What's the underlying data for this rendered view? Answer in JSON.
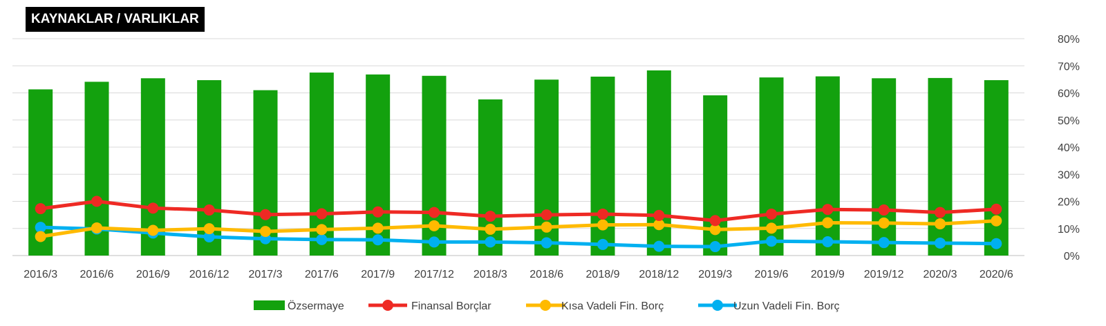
{
  "chart_data": {
    "type": "bar",
    "title": "KAYNAKLAR / VARLIKLAR",
    "categories": [
      "2016/3",
      "2016/6",
      "2016/9",
      "2016/12",
      "2017/3",
      "2017/6",
      "2017/9",
      "2017/12",
      "2018/3",
      "2018/6",
      "2018/9",
      "2018/12",
      "2019/3",
      "2019/6",
      "2019/9",
      "2019/12",
      "2020/3",
      "2020/6"
    ],
    "ylim": [
      0,
      80
    ],
    "y_ticks": [
      "0%",
      "10%",
      "20%",
      "30%",
      "40%",
      "50%",
      "60%",
      "70%",
      "80%"
    ],
    "y_axis_position": "right",
    "grid": true,
    "legend_position": "bottom",
    "series": [
      {
        "name": "Özsermaye",
        "kind": "bar",
        "color": "#13a10e",
        "values": [
          61.3,
          64.1,
          65.4,
          64.7,
          61.0,
          67.5,
          66.8,
          66.3,
          57.6,
          64.9,
          66.0,
          68.3,
          59.1,
          65.7,
          66.1,
          65.4,
          65.5,
          64.7
        ]
      },
      {
        "name": "Finansal Borçlar",
        "kind": "line",
        "color": "#ee2a24",
        "values": [
          17.3,
          20.0,
          17.5,
          16.8,
          15.1,
          15.4,
          16.1,
          15.9,
          14.5,
          15.0,
          15.3,
          14.8,
          12.9,
          15.3,
          17.0,
          16.8,
          15.9,
          17.1
        ]
      },
      {
        "name": "Kısa Vadeli Fin. Borç",
        "kind": "line",
        "color": "#ffba00",
        "values": [
          7.0,
          10.2,
          9.3,
          9.9,
          8.9,
          9.6,
          10.1,
          11.0,
          9.7,
          10.5,
          11.3,
          11.4,
          9.6,
          10.1,
          12.1,
          12.0,
          11.7,
          12.8
        ]
      },
      {
        "name": "Uzun Vadeli Fin. Borç",
        "kind": "line",
        "color": "#00b0f0",
        "values": [
          10.4,
          9.8,
          8.3,
          6.9,
          6.2,
          5.9,
          5.8,
          5.0,
          5.0,
          4.7,
          4.1,
          3.4,
          3.3,
          5.3,
          5.1,
          4.8,
          4.6,
          4.4
        ]
      }
    ]
  }
}
